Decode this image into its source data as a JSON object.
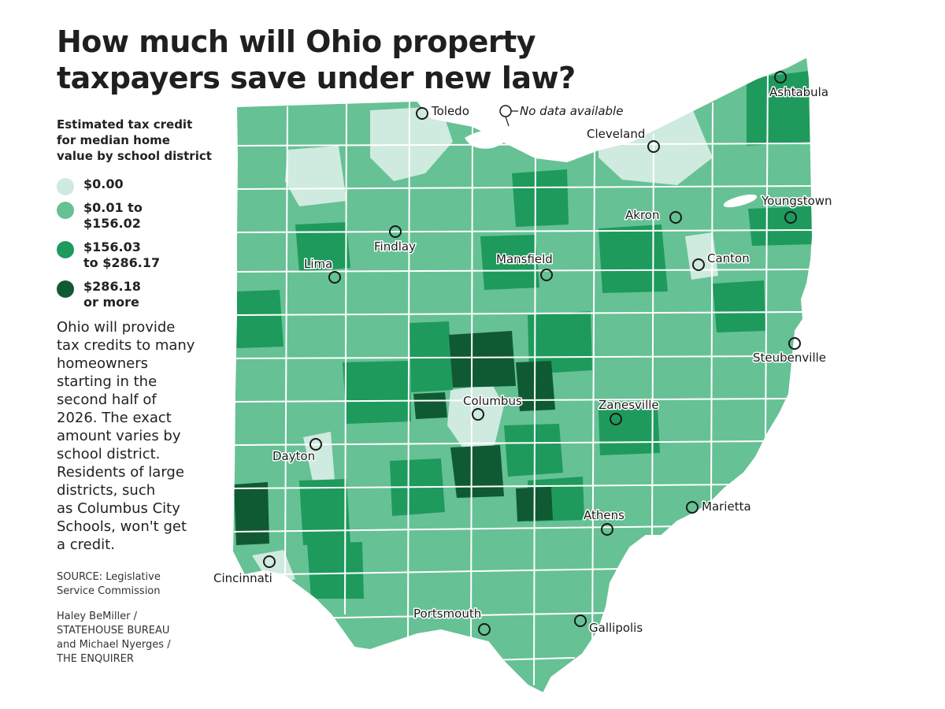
{
  "title": {
    "line1": "How much will Ohio property",
    "line2": "taxpayers save under new law?"
  },
  "legend": {
    "heading_lines": [
      "Estimated tax credit",
      "for median home",
      "value by school district"
    ],
    "items": [
      {
        "lines": [
          "$0.00"
        ],
        "color": "#cfeadf"
      },
      {
        "lines": [
          "$0.01 to",
          "$156.02"
        ],
        "color": "#66c195"
      },
      {
        "lines": [
          "$156.03",
          "to $286.17"
        ],
        "color": "#1e9a5c"
      },
      {
        "lines": [
          "$286.18",
          "or more"
        ],
        "color": "#0f5a33"
      }
    ]
  },
  "description_lines": [
    "Ohio will provide",
    "tax credits to many",
    "homeowners",
    "starting in the",
    "second half of",
    "2026. The exact",
    "amount varies by",
    "school district.",
    "Residents of large",
    "districts, such",
    "as Columbus City",
    "Schools, won't get",
    "a credit."
  ],
  "source_lines": [
    "SOURCE: Legislative",
    "Service Commission"
  ],
  "credit_lines": [
    "Haley BeMiller /",
    "STATEHOUSE BUREAU",
    "and Michael Nyerges /",
    "THE ENQUIRER"
  ],
  "no_data_label": "No data available",
  "cities": [
    {
      "name": "Toledo"
    },
    {
      "name": "Cleveland"
    },
    {
      "name": "Ashtabula"
    },
    {
      "name": "Youngstown"
    },
    {
      "name": "Akron"
    },
    {
      "name": "Canton"
    },
    {
      "name": "Findlay"
    },
    {
      "name": "Lima"
    },
    {
      "name": "Mansfield"
    },
    {
      "name": "Steubenville"
    },
    {
      "name": "Columbus"
    },
    {
      "name": "Zanesville"
    },
    {
      "name": "Dayton"
    },
    {
      "name": "Marietta"
    },
    {
      "name": "Athens"
    },
    {
      "name": "Cincinnati"
    },
    {
      "name": "Portsmouth"
    },
    {
      "name": "Gallipolis"
    }
  ],
  "colors": {
    "tier0": "#cfeadf",
    "tier1": "#66c195",
    "tier2": "#1e9a5c",
    "tier3": "#0f5a33",
    "border": "#ffffff"
  }
}
